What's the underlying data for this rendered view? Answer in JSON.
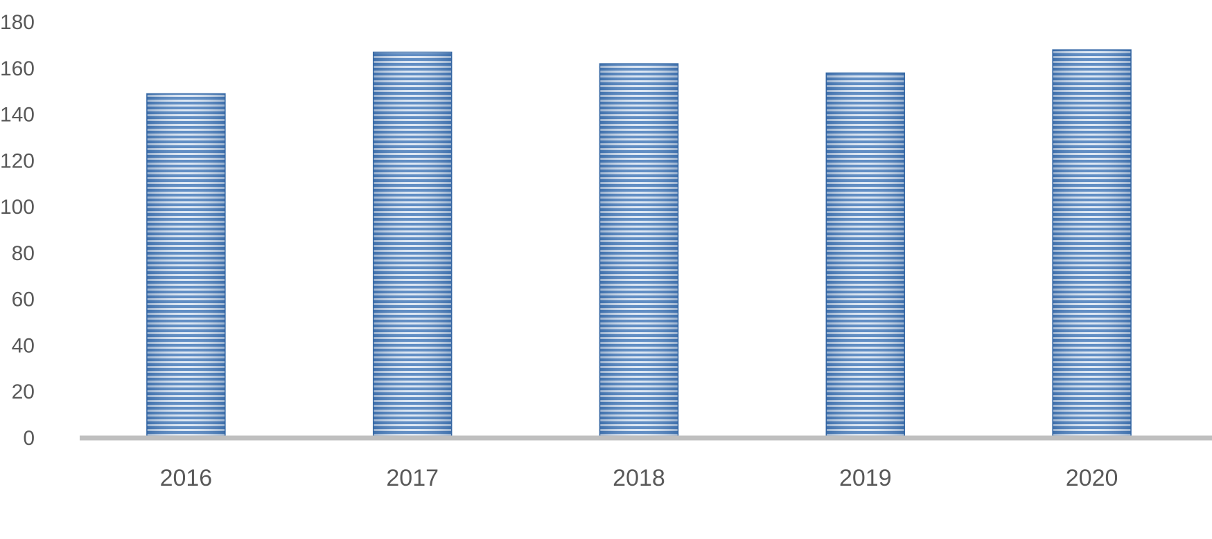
{
  "chart_data": {
    "type": "bar",
    "title": "",
    "xlabel": "",
    "ylabel": "",
    "categories": [
      "2016",
      "2017",
      "2018",
      "2019",
      "2020"
    ],
    "values": [
      149,
      167,
      162,
      158,
      168
    ],
    "ylim": [
      0,
      180
    ],
    "yticks": [
      "0",
      "20",
      "40",
      "60",
      "80",
      "100",
      "120",
      "140",
      "160",
      "180"
    ],
    "grid": false,
    "legend": "none",
    "bar_pattern": "horizontal-stripes",
    "colors": {
      "bar_stripe": "#4f81bd",
      "bar_stripe_light": "#dbe6f3",
      "bar_edge": "#3a6ca8",
      "axis_line": "#bfbfbf",
      "label": "#595959"
    }
  }
}
